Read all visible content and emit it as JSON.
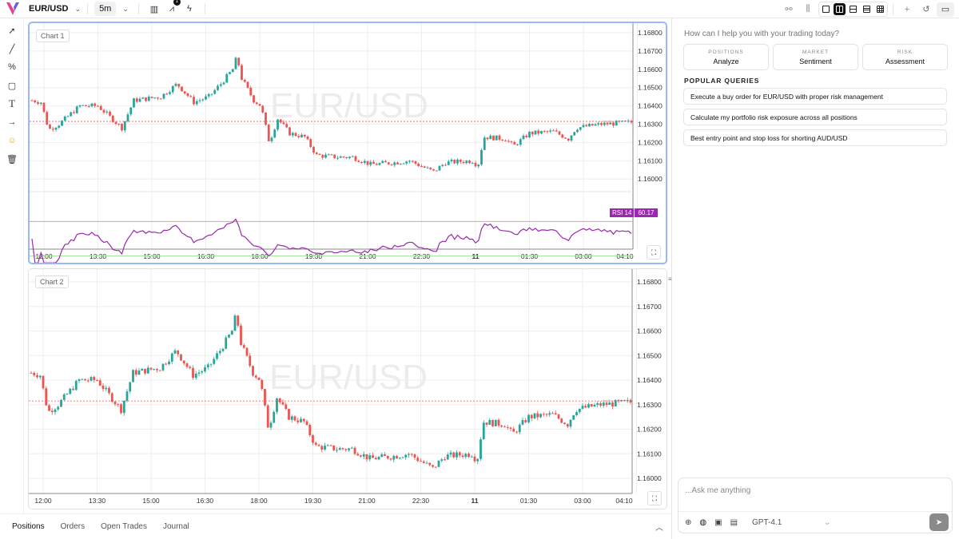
{
  "topbar": {
    "symbol": "EUR/USD",
    "timeframe": "5m",
    "indicator_badge": "1"
  },
  "left_tools": [
    "cursor-icon",
    "trendline-icon",
    "fib-icon",
    "rectangle-icon",
    "text-icon",
    "arrow-icon",
    "emoji-icon",
    "trash-icon"
  ],
  "charts": [
    {
      "label": "Chart 1",
      "watermark": "EUR/USD",
      "rsi_label": "RSI 14",
      "rsi_value": "60.17"
    },
    {
      "label": "Chart 2",
      "watermark": "EUR/USD"
    }
  ],
  "chart_data": {
    "type": "candlestick",
    "symbol": "EUR/USD",
    "interval": "5m",
    "price_ticks": [
      "1.16800",
      "1.16700",
      "1.16600",
      "1.16500",
      "1.16400",
      "1.16300",
      "1.16200",
      "1.16100",
      "1.16000"
    ],
    "time_ticks": [
      "12:00",
      "13:30",
      "15:00",
      "16:30",
      "18:00",
      "19:30",
      "21:00",
      "22:30",
      "11",
      "01:30",
      "03:00",
      "04:10"
    ],
    "current_price": 1.16315,
    "path_keypoints_minutes_from_1200_price": [
      [
        -20,
        1.1643
      ],
      [
        -5,
        1.1642
      ],
      [
        8,
        1.1627
      ],
      [
        25,
        1.163
      ],
      [
        60,
        1.164
      ],
      [
        90,
        1.164
      ],
      [
        130,
        1.1628
      ],
      [
        150,
        1.1643
      ],
      [
        195,
        1.1645
      ],
      [
        222,
        1.1652
      ],
      [
        250,
        1.1642
      ],
      [
        275,
        1.1645
      ],
      [
        295,
        1.1652
      ],
      [
        315,
        1.166
      ],
      [
        322,
        1.1667
      ],
      [
        330,
        1.1655
      ],
      [
        350,
        1.1643
      ],
      [
        362,
        1.164
      ],
      [
        376,
        1.162
      ],
      [
        390,
        1.1633
      ],
      [
        410,
        1.1625
      ],
      [
        435,
        1.1623
      ],
      [
        455,
        1.1613
      ],
      [
        490,
        1.1612
      ],
      [
        515,
        1.1612
      ],
      [
        545,
        1.1608
      ],
      [
        585,
        1.1609
      ],
      [
        610,
        1.161
      ],
      [
        650,
        1.1604
      ],
      [
        670,
        1.1609
      ],
      [
        715,
        1.161
      ],
      [
        724,
        1.1607
      ],
      [
        734,
        1.1623
      ],
      [
        770,
        1.1622
      ],
      [
        783,
        1.1618
      ],
      [
        810,
        1.1625
      ],
      [
        850,
        1.1626
      ],
      [
        875,
        1.1622
      ],
      [
        888,
        1.1628
      ],
      [
        930,
        1.163
      ],
      [
        980,
        1.1631
      ]
    ],
    "rsi": {
      "period": 14,
      "upper": 70,
      "lower": 30,
      "last": 60.17
    }
  },
  "bottom_tabs": [
    "Positions",
    "Orders",
    "Open Trades",
    "Journal"
  ],
  "assistant": {
    "greeting": "How can I help you with your trading today?",
    "cards": [
      {
        "kicker": "POSITIONS",
        "label": "Analyze"
      },
      {
        "kicker": "MARKET",
        "label": "Sentiment"
      },
      {
        "kicker": "RISK",
        "label": "Assessment"
      }
    ],
    "popular_title": "POPULAR QUERIES",
    "queries": [
      "Execute a buy order for EUR/USD with proper risk management",
      "Calculate my portfolio risk exposure across all positions",
      "Best entry point and stop loss for shorting AUD/USD"
    ],
    "input_placeholder": "...Ask me anything",
    "model": "GPT-4.1"
  },
  "colors": {
    "up": "#26a69a",
    "down": "#ef5350",
    "rsi": "#9c27b0",
    "select": "#9ab8f5"
  }
}
